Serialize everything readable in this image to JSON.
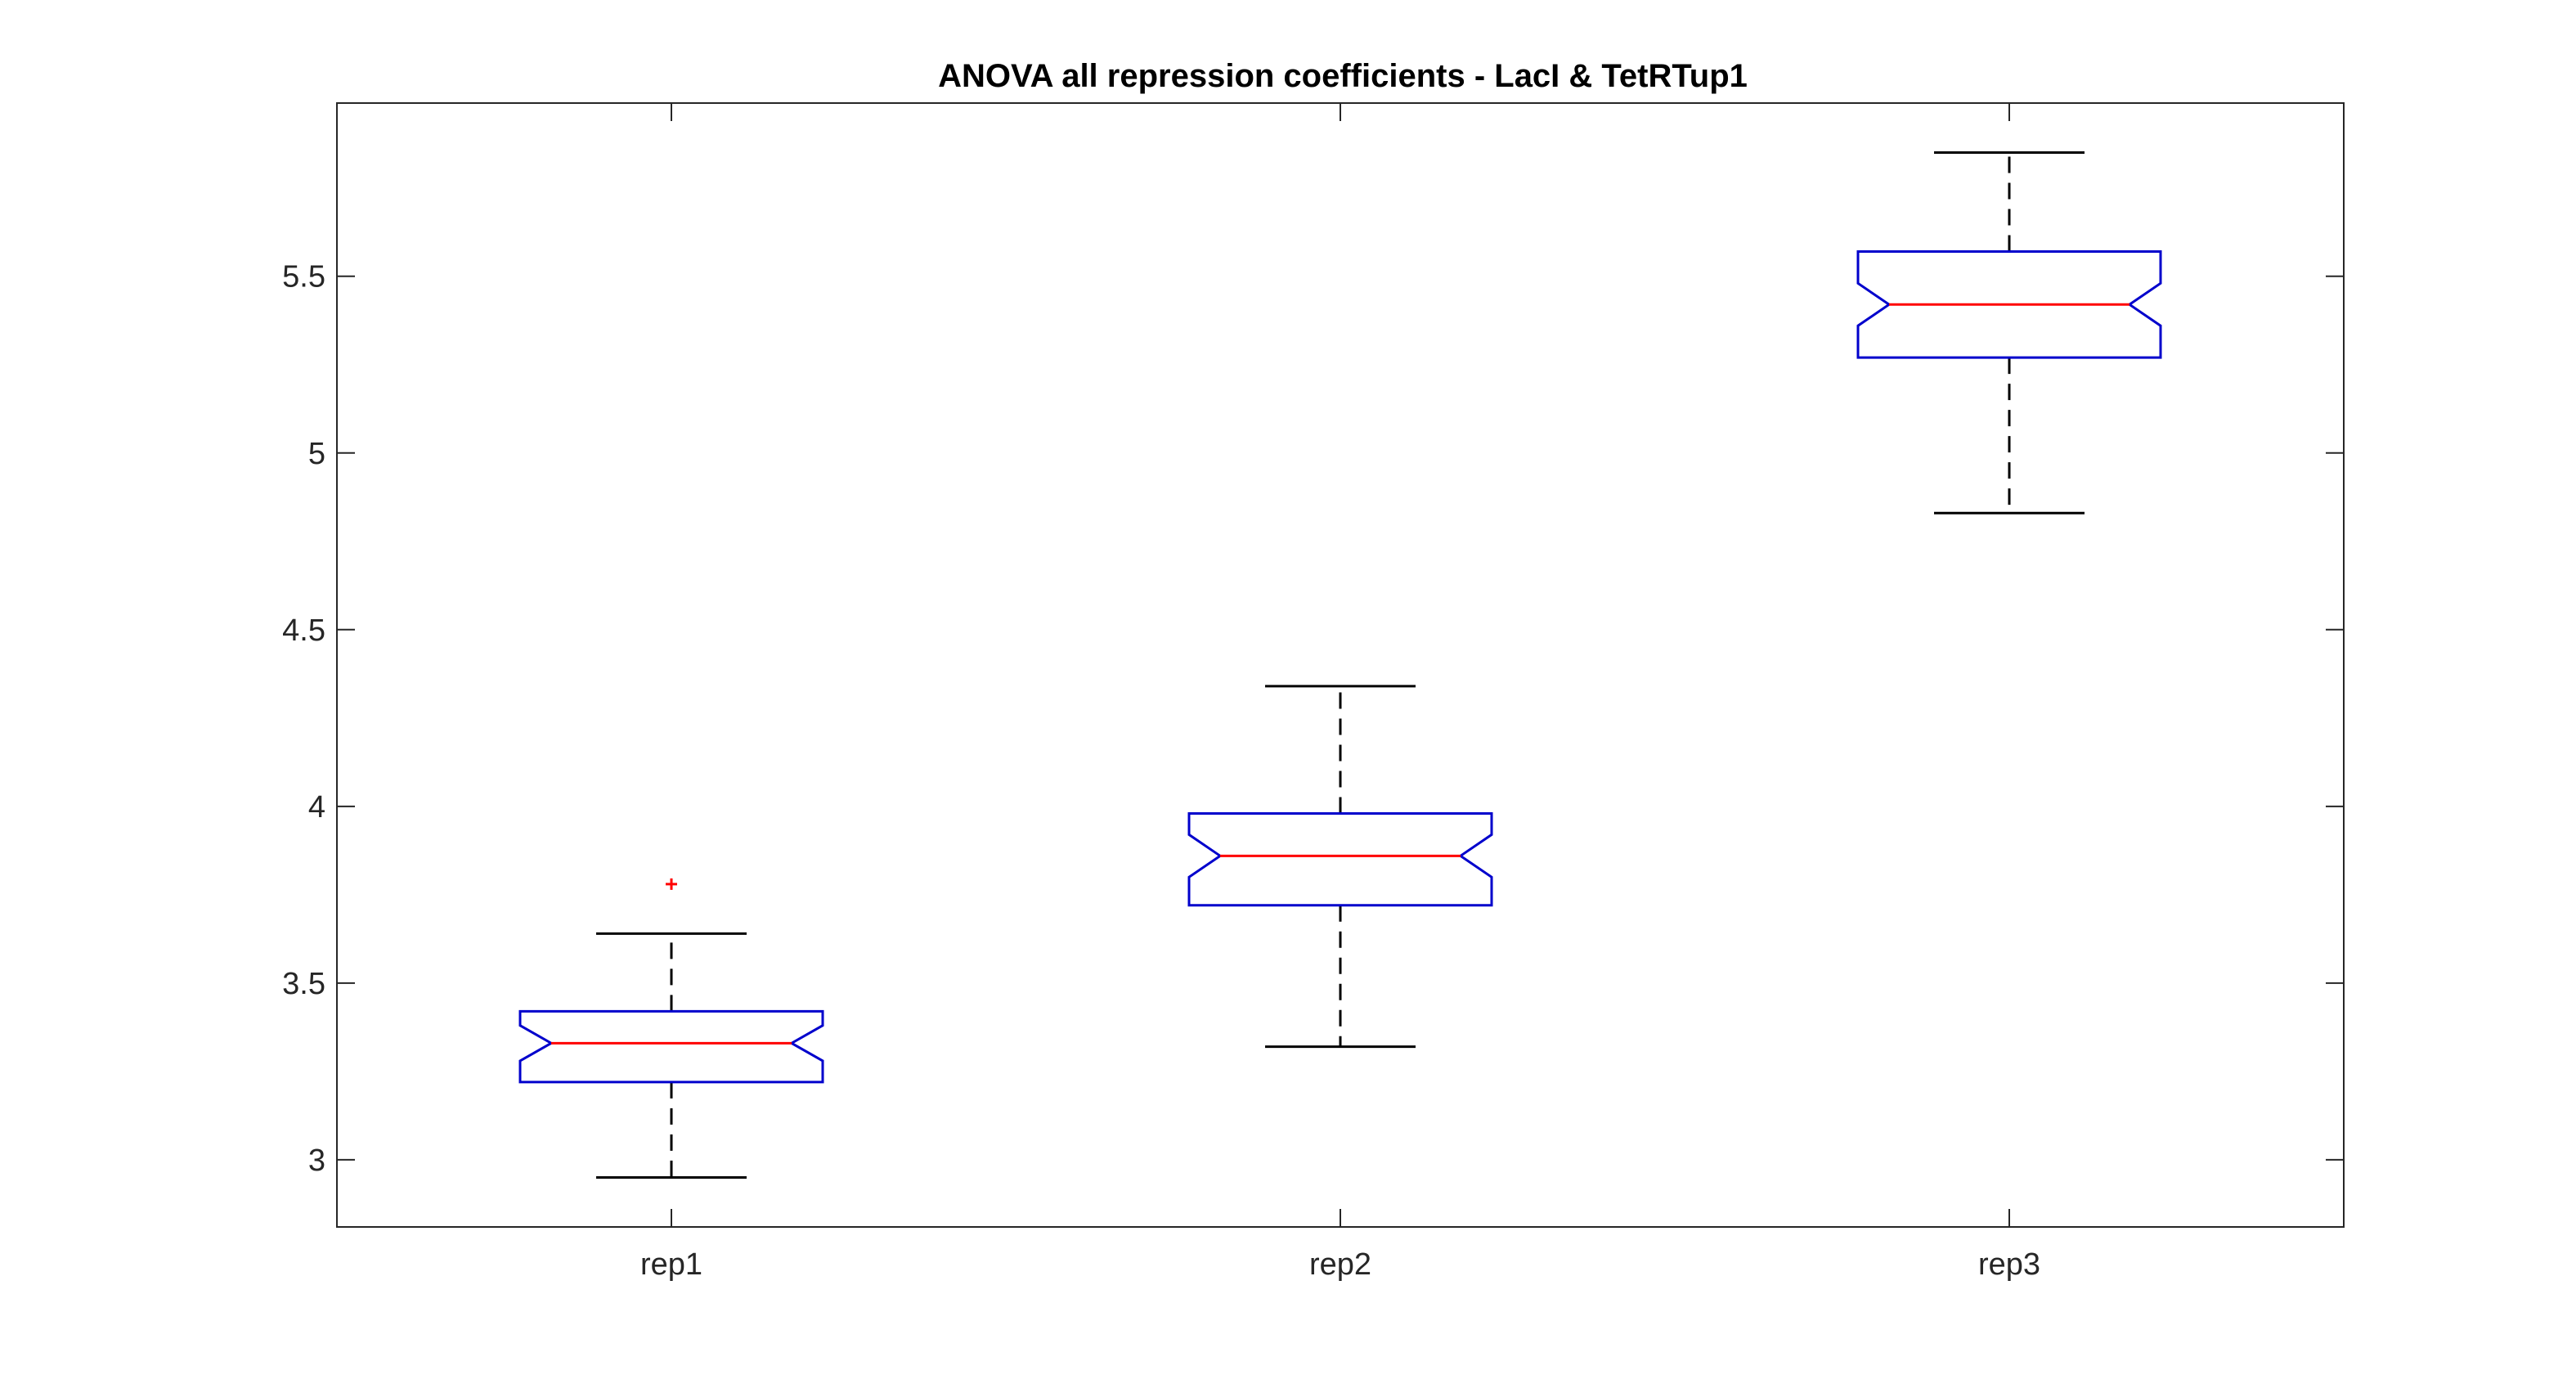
{
  "chart_data": {
    "type": "boxplot",
    "title": "ANOVA all repression coefficients - LacI & TetRTup1",
    "xlabel": "",
    "ylabel": "",
    "categories": [
      "rep1",
      "rep2",
      "rep3"
    ],
    "ylim": [
      2.81,
      5.99
    ],
    "yticks": [
      3,
      3.5,
      4,
      4.5,
      5,
      5.5
    ],
    "ytick_labels": [
      "3",
      "3.5",
      "4",
      "4.5",
      "5",
      "5.5"
    ],
    "notched": true,
    "boxes": [
      {
        "name": "rep1",
        "whisker_low": 2.95,
        "q1": 3.22,
        "notch_low": 3.28,
        "median": 3.33,
        "notch_high": 3.38,
        "q3": 3.42,
        "whisker_high": 3.64,
        "outliers": [
          3.78
        ]
      },
      {
        "name": "rep2",
        "whisker_low": 3.32,
        "q1": 3.72,
        "notch_low": 3.8,
        "median": 3.86,
        "notch_high": 3.92,
        "q3": 3.98,
        "whisker_high": 4.34,
        "outliers": []
      },
      {
        "name": "rep3",
        "whisker_low": 4.83,
        "q1": 5.27,
        "notch_low": 5.36,
        "median": 5.42,
        "notch_high": 5.48,
        "q3": 5.57,
        "whisker_high": 5.85,
        "outliers": []
      }
    ],
    "colors": {
      "box": "#0000cc",
      "median": "#ff0000",
      "whisker": "#000000",
      "outlier": "#ff0000",
      "axes": "#262626"
    },
    "grid": false,
    "legend": "none"
  }
}
